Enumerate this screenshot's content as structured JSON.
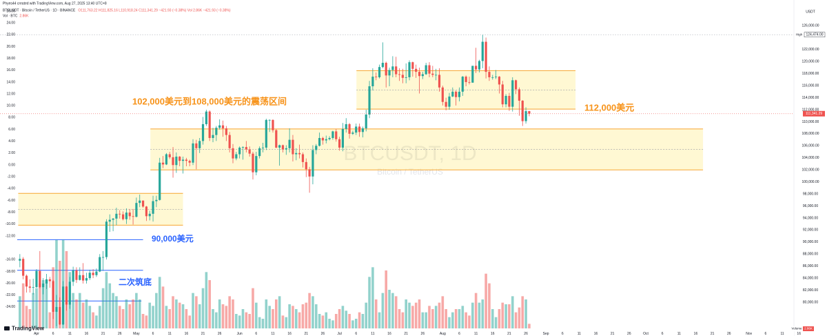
{
  "header": {
    "credit": "Phyes44 created with TradingView.com, Aug 27, 2025 13:40 UTC+8",
    "symbol": "BTCUSDT · Bitcoin / TetherUS · 1D · BINANCE",
    "ohlc": "O111,763.22 H111,825.16 L110,918.24 C111,341.29 −421.93 (−0.38%)  Vol 2.86K  −421.93 (−0.38%)",
    "vol_title": "Vol · BTC",
    "vol_value": "2.86K",
    "logo": "TradingView"
  },
  "chart_data": {
    "type": "candlestick",
    "title": "BTCUSDT, 1D",
    "subtitle": "Bitcoin / TetherUS",
    "y_unit": "USDT",
    "up_color": "#26a69a",
    "down_color": "#ef5350",
    "grid": false,
    "open": [
      86900,
      87200,
      84400,
      82600,
      82400,
      82500,
      85200,
      82500,
      83100,
      83800,
      83500,
      78400,
      79200,
      76300,
      82600,
      79600,
      83400,
      85300,
      83700,
      84500,
      83600,
      84000,
      84900,
      84500,
      85100,
      87500,
      87500,
      93400,
      93700,
      93900,
      94700,
      94600,
      93800,
      94900,
      94300,
      94200,
      96500,
      96900,
      95900,
      94300,
      94700,
      96800,
      97000,
      103200,
      102900,
      104600,
      104100,
      102800,
      104200,
      103500,
      103700,
      103500,
      103200,
      106400,
      105600,
      106800,
      109600,
      111700,
      107300,
      107800,
      109000,
      109400,
      108900,
      107800,
      105600,
      103900,
      104600,
      105700,
      105800,
      105400,
      104700,
      101600,
      104300,
      105600,
      105700,
      110300,
      110300,
      108600,
      105700,
      106100,
      105400,
      105600,
      107000,
      104600,
      104800,
      104600,
      103300,
      102100,
      100900,
      105300,
      106000,
      107300,
      106900,
      107100,
      107300,
      108400,
      107100,
      105700,
      108800,
      109600,
      108000,
      108200,
      109200,
      108300,
      108900,
      111200,
      115900,
      117500,
      117400,
      119100,
      119800,
      117700,
      118600,
      119200,
      117900,
      117800,
      117300,
      117400,
      119900,
      118800,
      118300,
      117600,
      117900,
      119400,
      118000,
      117800,
      117800,
      115700,
      113300,
      112500,
      114200,
      115000,
      114100,
      115000,
      117500,
      116600,
      116500,
      119300,
      118700,
      120100,
      123300,
      118300,
      117400,
      117400,
      117500,
      116200,
      112900,
      114300,
      112500,
      116900,
      115400,
      113500,
      110100,
      111763.22
    ],
    "high": [
      88000,
      87500,
      84600,
      83800,
      83900,
      85500,
      88500,
      84000,
      84700,
      84200,
      83700,
      81200,
      80800,
      83500,
      82700,
      84200,
      85900,
      85800,
      85800,
      86500,
      84900,
      85400,
      85500,
      85600,
      88000,
      88500,
      93800,
      94600,
      94000,
      95700,
      95300,
      95100,
      95600,
      95500,
      95500,
      97400,
      97900,
      96900,
      96000,
      95200,
      97700,
      97700,
      104000,
      104300,
      104800,
      105000,
      105800,
      104900,
      104300,
      104200,
      104000,
      103700,
      107100,
      107000,
      107300,
      110800,
      112000,
      111900,
      109000,
      109300,
      110400,
      110200,
      109300,
      108300,
      106300,
      105000,
      105900,
      105900,
      106800,
      105900,
      105000,
      105000,
      105900,
      106500,
      110500,
      110400,
      110400,
      108800,
      106200,
      106200,
      106100,
      108900,
      107800,
      105600,
      106200,
      104900,
      103900,
      102500,
      106100,
      106300,
      108200,
      107500,
      107700,
      107600,
      108500,
      108800,
      107500,
      109800,
      110600,
      109800,
      108500,
      109700,
      109700,
      109200,
      112000,
      116800,
      118900,
      118200,
      119500,
      123200,
      120000,
      119000,
      120900,
      120800,
      118900,
      118800,
      119700,
      120200,
      120000,
      119500,
      119000,
      118300,
      119800,
      119900,
      119300,
      118800,
      118900,
      116000,
      114000,
      114800,
      115700,
      115200,
      115700,
      117600,
      117700,
      117500,
      119300,
      122300,
      120300,
      124474,
      124000,
      119200,
      117800,
      118600,
      117600,
      116800,
      114600,
      114800,
      117400,
      117000,
      115700,
      113600,
      112400,
      111825.16
    ],
    "low": [
      85800,
      83800,
      81600,
      81600,
      81300,
      82400,
      82300,
      81300,
      82200,
      82400,
      77200,
      76000,
      76200,
      76200,
      78600,
      78900,
      82700,
      83200,
      83600,
      83100,
      83100,
      83700,
      84000,
      84200,
      85000,
      85200,
      87100,
      91700,
      91800,
      92800,
      93900,
      93600,
      93000,
      93700,
      92900,
      94100,
      95800,
      95700,
      93500,
      93600,
      93400,
      95800,
      96900,
      102300,
      102800,
      103800,
      100700,
      101500,
      102600,
      101400,
      102600,
      102600,
      102800,
      102100,
      104800,
      106200,
      109300,
      106800,
      106600,
      106800,
      108700,
      107500,
      106800,
      104900,
      103100,
      103600,
      103900,
      103700,
      104900,
      104200,
      100400,
      101100,
      103900,
      104900,
      105300,
      108300,
      108200,
      105600,
      102700,
      104900,
      104500,
      104900,
      103400,
      103600,
      103900,
      102400,
      100800,
      98200,
      99600,
      104600,
      105900,
      106200,
      106400,
      106900,
      107000,
      106700,
      105200,
      105100,
      108200,
      107200,
      107800,
      107800,
      107500,
      107400,
      108400,
      110600,
      115200,
      116900,
      117200,
      118900,
      115700,
      115900,
      117400,
      117400,
      116800,
      116400,
      116400,
      116900,
      117500,
      117300,
      114700,
      117100,
      117800,
      117400,
      117400,
      116900,
      115000,
      112700,
      111900,
      112000,
      114100,
      112700,
      113400,
      114300,
      115900,
      116200,
      116500,
      118100,
      118200,
      118900,
      117200,
      116800,
      117000,
      117100,
      114700,
      112400,
      112400,
      111800,
      111700,
      114600,
      111000,
      109300,
      109700,
      110918.24
    ],
    "close": [
      87200,
      84400,
      82600,
      82400,
      82500,
      85200,
      82500,
      83100,
      83800,
      83500,
      78400,
      79200,
      76300,
      82600,
      79600,
      83400,
      85300,
      83700,
      84500,
      83600,
      84000,
      84900,
      84500,
      85100,
      87500,
      87500,
      93400,
      93700,
      93900,
      94700,
      94600,
      93800,
      94900,
      94300,
      94200,
      96500,
      96900,
      95900,
      94300,
      94700,
      96800,
      97000,
      103200,
      102900,
      104600,
      104100,
      102800,
      104200,
      103500,
      103700,
      103500,
      103200,
      106400,
      105600,
      106800,
      109600,
      111700,
      107300,
      107800,
      109000,
      109400,
      108900,
      107800,
      105600,
      103900,
      104600,
      105700,
      105800,
      105400,
      104700,
      101600,
      104300,
      105600,
      105700,
      110300,
      110300,
      108600,
      105700,
      106100,
      105400,
      105600,
      107000,
      104600,
      104800,
      104600,
      103300,
      102100,
      100900,
      105300,
      106000,
      107300,
      106900,
      107100,
      107300,
      108400,
      107100,
      105700,
      108800,
      109600,
      108000,
      108200,
      109200,
      108300,
      108900,
      111200,
      115900,
      117500,
      117400,
      119100,
      119800,
      117700,
      118600,
      119200,
      117900,
      117800,
      117300,
      117400,
      119900,
      118800,
      118300,
      117600,
      117900,
      119400,
      118000,
      117800,
      117800,
      115700,
      113300,
      112500,
      114200,
      115000,
      114100,
      115000,
      117500,
      116600,
      116500,
      119300,
      118700,
      120100,
      123300,
      118300,
      117400,
      117400,
      117500,
      116200,
      112900,
      114300,
      112500,
      116900,
      115400,
      113500,
      110100,
      111763.22,
      111341.29
    ],
    "last_label": "111,341.29",
    "volume": [
      20000,
      28000,
      14000,
      12000,
      22000,
      25000,
      28000,
      30000,
      30000,
      10000,
      38000,
      55000,
      42000,
      55000,
      48000,
      35000,
      22000,
      18000,
      22000,
      16000,
      18000,
      14000,
      10000,
      8000,
      14000,
      25000,
      35000,
      28000,
      22000,
      20000,
      14000,
      12000,
      18000,
      15000,
      18000,
      22000,
      18000,
      9000,
      8000,
      16000,
      14000,
      22000,
      32000,
      26000,
      14000,
      12000,
      20000,
      18000,
      16000,
      15000,
      12000,
      8000,
      22000,
      20000,
      15000,
      25000,
      35000,
      30000,
      12000,
      10000,
      18000,
      15000,
      14000,
      20000,
      18000,
      9000,
      8000,
      12000,
      10000,
      9000,
      25000,
      16000,
      7000,
      6000,
      18000,
      14000,
      12000,
      18000,
      20000,
      8000,
      7000,
      15000,
      14000,
      12000,
      10000,
      15000,
      16000,
      22000,
      20000,
      15000,
      9000,
      8000,
      10000,
      6000,
      5000,
      9000,
      12000,
      14000,
      11000,
      9000,
      5000,
      6000,
      10000,
      9000,
      16000,
      32000,
      38000,
      18000,
      10000,
      22000,
      36000,
      24000,
      22000,
      20000,
      12000,
      10000,
      18000,
      16000,
      14000,
      16000,
      18000,
      10000,
      10000,
      14000,
      12000,
      14000,
      16000,
      20000,
      12000,
      7000,
      10000,
      12000,
      12000,
      14000,
      10000,
      8000,
      16000,
      22000,
      16000,
      18000,
      34000,
      28000,
      12000,
      7000,
      12000,
      16000,
      15000,
      15000,
      20000,
      10000,
      13000,
      20000,
      18000,
      2860
    ],
    "volume_tag": "Volume",
    "vlim": [
      0,
      60000
    ],
    "high_tag": {
      "title": "High",
      "value": 124474,
      "label": "124,474.00"
    },
    "xlim": [
      -5.97,
      235.2
    ],
    "xticks": [
      {
        "value": 5,
        "label": "Apr"
      },
      {
        "value": 10,
        "label": "6"
      },
      {
        "value": 15,
        "label": "11"
      },
      {
        "value": 20,
        "label": "16"
      },
      {
        "value": 25,
        "label": "21"
      },
      {
        "value": 30,
        "label": "26"
      },
      {
        "value": 35,
        "label": "May"
      },
      {
        "value": 40,
        "label": "6"
      },
      {
        "value": 45,
        "label": "11"
      },
      {
        "value": 50,
        "label": "16"
      },
      {
        "value": 55,
        "label": "21"
      },
      {
        "value": 60,
        "label": "26"
      },
      {
        "value": 66,
        "label": "Jun"
      },
      {
        "value": 71,
        "label": "6"
      },
      {
        "value": 76,
        "label": "11"
      },
      {
        "value": 81,
        "label": "16"
      },
      {
        "value": 86,
        "label": "21"
      },
      {
        "value": 91,
        "label": "26"
      },
      {
        "value": 96,
        "label": "Jul"
      },
      {
        "value": 101,
        "label": "6"
      },
      {
        "value": 106,
        "label": "11"
      },
      {
        "value": 111,
        "label": "16"
      },
      {
        "value": 116,
        "label": "21"
      },
      {
        "value": 121,
        "label": "26"
      },
      {
        "value": 127,
        "label": "Aug"
      },
      {
        "value": 132,
        "label": "6"
      },
      {
        "value": 137,
        "label": "11"
      },
      {
        "value": 142,
        "label": "16"
      },
      {
        "value": 147,
        "label": "21"
      },
      {
        "value": 152,
        "label": "26"
      },
      {
        "value": 158,
        "label": "Sep"
      },
      {
        "value": 163,
        "label": "6"
      },
      {
        "value": 168,
        "label": "11"
      },
      {
        "value": 173,
        "label": "16"
      },
      {
        "value": 178,
        "label": "21"
      },
      {
        "value": 183,
        "label": "26"
      },
      {
        "value": 188,
        "label": "Oct"
      },
      {
        "value": 193,
        "label": "6"
      },
      {
        "value": 198,
        "label": "11"
      },
      {
        "value": 203,
        "label": "16"
      },
      {
        "value": 208,
        "label": "21"
      },
      {
        "value": 213,
        "label": "26"
      },
      {
        "value": 219,
        "label": "Nov"
      },
      {
        "value": 224,
        "label": "6"
      },
      {
        "value": 229,
        "label": "11"
      },
      {
        "value": 234,
        "label": "16"
      }
    ],
    "ylim": [
      75411,
      129097
    ],
    "yticks": [
      {
        "value": 126000,
        "label": "126,000.00"
      },
      {
        "value": 122000,
        "label": "122,000.00"
      },
      {
        "value": 120000,
        "label": "120,000.00"
      },
      {
        "value": 118000,
        "label": "118,000.00"
      },
      {
        "value": 116000,
        "label": "116,000.00"
      },
      {
        "value": 114000,
        "label": "114,000.00"
      },
      {
        "value": 112000,
        "label": "112,000.00"
      },
      {
        "value": 110000,
        "label": "110,000.00"
      },
      {
        "value": 108000,
        "label": "108,000.00"
      },
      {
        "value": 106000,
        "label": "106,000.00"
      },
      {
        "value": 104000,
        "label": "104,000.00"
      },
      {
        "value": 102000,
        "label": "102,000.00"
      },
      {
        "value": 100000,
        "label": "100,000.00"
      },
      {
        "value": 98000,
        "label": "98,000.00"
      },
      {
        "value": 96000,
        "label": "96,000.00"
      },
      {
        "value": 94000,
        "label": "94,000.00"
      },
      {
        "value": 92000,
        "label": "92,000.00"
      },
      {
        "value": 90000,
        "label": "90,000.00"
      },
      {
        "value": 88000,
        "label": "88,000.00"
      },
      {
        "value": 86000,
        "label": "86,000.00"
      },
      {
        "value": 84000,
        "label": "84,000.00"
      },
      {
        "value": 82000,
        "label": "82,000.00"
      },
      {
        "value": 80000,
        "label": "80,000.00"
      }
    ],
    "y2lim": [
      -27.86,
      26.7
    ],
    "y2ticks": [
      {
        "value": 26,
        "label": "26.00"
      },
      {
        "value": 24,
        "label": "24.00"
      },
      {
        "value": 22,
        "label": "22.00"
      },
      {
        "value": 20,
        "label": "20.00"
      },
      {
        "value": 18,
        "label": "18.00"
      },
      {
        "value": 16,
        "label": "16.00"
      },
      {
        "value": 14,
        "label": "14.00"
      },
      {
        "value": 12,
        "label": "12.00"
      },
      {
        "value": 10,
        "label": "10.00"
      },
      {
        "value": 8,
        "label": "8.00"
      },
      {
        "value": 6,
        "label": "6.00"
      },
      {
        "value": 4,
        "label": "4.00"
      },
      {
        "value": 2,
        "label": "2.00"
      },
      {
        "value": 0,
        "label": "0.00"
      },
      {
        "value": -2,
        "label": "-2.00"
      },
      {
        "value": -4,
        "label": "-4.00"
      },
      {
        "value": -6,
        "label": "-6.00"
      },
      {
        "value": -8,
        "label": "-8.00"
      },
      {
        "value": -10,
        "label": "-10.00"
      },
      {
        "value": -12,
        "label": "-12.00"
      },
      {
        "value": -16,
        "label": "-16.00"
      },
      {
        "value": -18,
        "label": "-18.00"
      },
      {
        "value": -20,
        "label": "-20.00"
      },
      {
        "value": -22,
        "label": "-22.00"
      },
      {
        "value": -24,
        "label": "-24.00"
      }
    ],
    "zones": [
      {
        "top": 98100,
        "bottom": 92800,
        "start": -0.5,
        "end": 49
      },
      {
        "top": 108800,
        "bottom": 102000,
        "start": 39.2,
        "end": 205.2
      },
      {
        "top": 118500,
        "bottom": 112100,
        "start": 101.1,
        "end": 166.9
      }
    ],
    "levels": [
      {
        "value": 90400,
        "start": -0.8,
        "end": 37
      },
      {
        "value": 85300,
        "start": -0.8,
        "end": 37
      },
      {
        "value": 80200,
        "start": -0.8,
        "end": 36.5
      }
    ],
    "annotations": [
      {
        "text": "102,000美元到108,000美元的震荡区间",
        "color": "#f7931a"
      },
      {
        "text": "112,000美元",
        "color": "#f7931a"
      },
      {
        "text": "90,000美元",
        "color": "#2962ff"
      },
      {
        "text": "二次筑底",
        "color": "#2962ff"
      }
    ]
  }
}
